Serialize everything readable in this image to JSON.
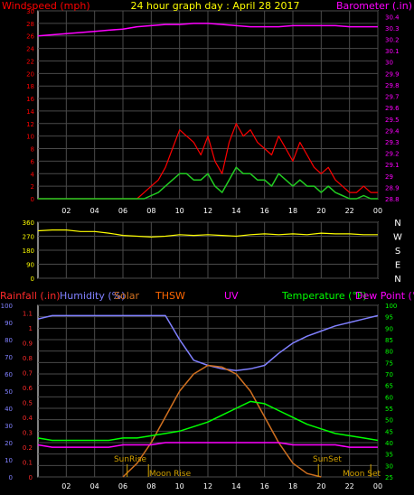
{
  "title": "24 hour graph day : April 28 2017",
  "colors": {
    "windspeed": "#ff0000",
    "gust": "#ff0000",
    "wind_avg": "#22cc22",
    "barometer": "#ff00ff",
    "direction": "#ffff00",
    "rainfall": "#ff2a2a",
    "humidity": "#8080ff",
    "solar": "#d07020",
    "thsw": "#ff6600",
    "uv": "#ff00ff",
    "temperature": "#00ff00",
    "dewpoint": "#ff00ff",
    "grid": "#4a4a4a"
  },
  "labels": {
    "windspeed": "Windspeed (mph)",
    "barometer": "Barometer (.in)",
    "rainfall": "Rainfall (.in)",
    "humidity": "Humidity (%)",
    "solar": "Solar",
    "thsw": "THSW",
    "uv": "UV",
    "temperature": "Temperature (°F)",
    "dewpoint": "Dew Point (°F)",
    "sunrise": "SunRise",
    "sunset": "SunSet",
    "moonrise": "Moon Rise",
    "moonset": "Moon Set"
  },
  "chart_data": [
    {
      "type": "line",
      "panel": "wind-barometer",
      "x_ticks": [
        "02",
        "04",
        "06",
        "08",
        "10",
        "12",
        "14",
        "16",
        "18",
        "20",
        "22",
        "00"
      ],
      "left_axis": {
        "label": "Windspeed (mph)",
        "ticks": [
          0,
          2,
          4,
          6,
          8,
          10,
          12,
          14,
          16,
          18,
          20,
          22,
          24,
          26,
          28,
          30
        ],
        "range": [
          0,
          30
        ]
      },
      "right_axis": {
        "label": "Barometer (.in)",
        "ticks": [
          "28.8",
          "28.9",
          "29",
          "29.1",
          "29.2",
          "29.3",
          "29.4",
          "29.5",
          "29.6",
          "29.7",
          "29.8",
          "29.9",
          "30",
          "30.1",
          "30.2",
          "30.3",
          "30.4"
        ],
        "range": [
          28.8,
          30.45
        ]
      },
      "series": [
        {
          "key": "barometer",
          "name": "Barometer (.in)",
          "x": [
            0,
            1,
            2,
            3,
            4,
            5,
            6,
            7,
            8,
            9,
            10,
            11,
            12,
            13,
            14,
            15,
            16,
            17,
            18,
            19,
            20,
            21,
            22,
            23,
            24
          ],
          "y": [
            30.23,
            30.24,
            30.25,
            30.26,
            30.27,
            30.28,
            30.29,
            30.31,
            30.32,
            30.33,
            30.33,
            30.34,
            30.34,
            30.33,
            30.32,
            30.31,
            30.31,
            30.31,
            30.32,
            30.32,
            30.32,
            30.32,
            30.31,
            30.31,
            30.31
          ]
        },
        {
          "key": "gust",
          "name": "Windspeed (mph)",
          "x": [
            0,
            1,
            2,
            3,
            4,
            5,
            6,
            7,
            7.5,
            8,
            8.5,
            9,
            9.5,
            10,
            10.5,
            11,
            11.5,
            12,
            12.5,
            13,
            13.5,
            14,
            14.5,
            15,
            15.5,
            16,
            16.5,
            17,
            17.5,
            18,
            18.5,
            19,
            19.5,
            20,
            20.5,
            21,
            21.5,
            22,
            22.5,
            23,
            23.5,
            24
          ],
          "y": [
            0,
            0,
            0,
            0,
            0,
            0,
            0,
            0,
            1,
            2,
            3,
            5,
            8,
            11,
            10,
            9,
            7,
            10,
            6,
            4,
            9,
            12,
            10,
            11,
            9,
            8,
            7,
            10,
            8,
            6,
            9,
            7,
            5,
            4,
            5,
            3,
            2,
            1,
            1,
            2,
            1,
            1
          ]
        },
        {
          "key": "wind_avg",
          "name": "Wind average",
          "x": [
            0,
            1,
            2,
            3,
            4,
            5,
            6,
            7,
            7.5,
            8,
            8.5,
            9,
            9.5,
            10,
            10.5,
            11,
            11.5,
            12,
            12.5,
            13,
            13.5,
            14,
            14.5,
            15,
            15.5,
            16,
            16.5,
            17,
            17.5,
            18,
            18.5,
            19,
            19.5,
            20,
            20.5,
            21,
            21.5,
            22,
            22.5,
            23,
            23.5,
            24
          ],
          "y": [
            0,
            0,
            0,
            0,
            0,
            0,
            0,
            0,
            0,
            0.5,
            1,
            2,
            3,
            4,
            4,
            3,
            3,
            4,
            2,
            1,
            3,
            5,
            4,
            4,
            3,
            3,
            2,
            4,
            3,
            2,
            3,
            2,
            2,
            1,
            2,
            1,
            0.5,
            0,
            0,
            0.5,
            0,
            0
          ]
        }
      ]
    },
    {
      "type": "line",
      "panel": "wind-direction",
      "left_axis": {
        "ticks": [
          0,
          90,
          180,
          270,
          360
        ],
        "range": [
          0,
          360
        ]
      },
      "right_labels": [
        "N",
        "W",
        "S",
        "E",
        "N"
      ],
      "series": [
        {
          "key": "direction",
          "name": "Wind direction",
          "x": [
            0,
            1,
            2,
            3,
            4,
            5,
            6,
            7,
            8,
            9,
            10,
            11,
            12,
            13,
            14,
            15,
            16,
            17,
            18,
            19,
            20,
            21,
            22,
            23,
            24
          ],
          "y": [
            305,
            310,
            310,
            300,
            300,
            290,
            275,
            270,
            265,
            270,
            280,
            275,
            280,
            275,
            270,
            280,
            285,
            280,
            285,
            280,
            290,
            285,
            285,
            280,
            280
          ]
        }
      ]
    },
    {
      "type": "line",
      "panel": "rain-humidity-temperature",
      "x_ticks": [
        "02",
        "04",
        "06",
        "08",
        "10",
        "12",
        "14",
        "16",
        "18",
        "20",
        "22",
        "00"
      ],
      "left_axis_rain": {
        "label": "Rainfall (.in)",
        "ticks": [
          "0",
          "0.1",
          "0.2",
          "0.3",
          "0.4",
          "0.5",
          "0.6",
          "0.7",
          "0.8",
          "0.9",
          "1",
          "1.1"
        ],
        "range": [
          0,
          1.15
        ]
      },
      "left_axis_humidity": {
        "label": "Humidity (%)",
        "ticks": [
          0,
          10,
          20,
          30,
          40,
          50,
          60,
          70,
          80,
          90,
          100
        ],
        "range": [
          0,
          100
        ]
      },
      "right_axis": {
        "label": "Temperature (°F)",
        "ticks": [
          25,
          30,
          35,
          40,
          45,
          50,
          55,
          60,
          65,
          70,
          75,
          80,
          85,
          90,
          95,
          100
        ],
        "range": [
          25,
          100
        ]
      },
      "series": [
        {
          "key": "humidity",
          "name": "Humidity (%)",
          "axis": "humidity",
          "x": [
            0,
            1,
            2,
            3,
            4,
            5,
            6,
            7,
            8,
            9,
            10,
            11,
            12,
            13,
            14,
            15,
            16,
            17,
            18,
            19,
            20,
            21,
            22,
            23,
            24
          ],
          "y": [
            92,
            94,
            94,
            94,
            94,
            94,
            94,
            94,
            94,
            94,
            80,
            68,
            65,
            63,
            62,
            63,
            65,
            72,
            78,
            82,
            85,
            88,
            90,
            92,
            94
          ]
        },
        {
          "key": "solar",
          "name": "Solar",
          "axis": "humidity",
          "x": [
            6,
            7,
            8,
            9,
            10,
            11,
            12,
            13,
            14,
            15,
            16,
            17,
            18,
            19,
            20
          ],
          "y": [
            0,
            8,
            20,
            35,
            50,
            60,
            65,
            64,
            60,
            50,
            35,
            20,
            8,
            2,
            0
          ]
        },
        {
          "key": "temperature",
          "name": "Temperature (°F)",
          "axis": "temp",
          "x": [
            0,
            1,
            2,
            3,
            4,
            5,
            6,
            7,
            8,
            9,
            10,
            11,
            12,
            13,
            14,
            15,
            16,
            17,
            18,
            19,
            20,
            21,
            22,
            23,
            24
          ],
          "y": [
            42,
            41,
            41,
            41,
            41,
            41,
            42,
            42,
            43,
            44,
            45,
            47,
            49,
            52,
            55,
            58,
            57,
            54,
            51,
            48,
            46,
            44,
            43,
            42,
            41
          ]
        },
        {
          "key": "dewpoint",
          "name": "Dew Point (°F)",
          "axis": "temp",
          "x": [
            0,
            1,
            2,
            3,
            4,
            5,
            6,
            7,
            8,
            9,
            10,
            11,
            12,
            13,
            14,
            15,
            16,
            17,
            18,
            19,
            20,
            21,
            22,
            23,
            24
          ],
          "y": [
            39,
            38,
            38,
            38,
            38,
            38,
            39,
            39,
            39,
            40,
            40,
            40,
            40,
            40,
            40,
            40,
            40,
            40,
            39,
            39,
            39,
            39,
            38,
            38,
            38
          ]
        }
      ],
      "events": [
        {
          "key": "sunrise",
          "x": 6.3
        },
        {
          "key": "sunset",
          "x": 19.8
        },
        {
          "key": "moonrise",
          "x": 7.8
        },
        {
          "key": "moonset",
          "x": 23.5
        }
      ]
    }
  ]
}
